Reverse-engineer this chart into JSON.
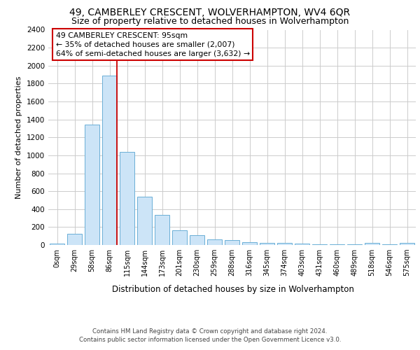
{
  "title1": "49, CAMBERLEY CRESCENT, WOLVERHAMPTON, WV4 6QR",
  "title2": "Size of property relative to detached houses in Wolverhampton",
  "xlabel": "Distribution of detached houses by size in Wolverhampton",
  "ylabel": "Number of detached properties",
  "categories": [
    "0sqm",
    "29sqm",
    "58sqm",
    "86sqm",
    "115sqm",
    "144sqm",
    "173sqm",
    "201sqm",
    "230sqm",
    "259sqm",
    "288sqm",
    "316sqm",
    "345sqm",
    "374sqm",
    "403sqm",
    "431sqm",
    "460sqm",
    "489sqm",
    "518sqm",
    "546sqm",
    "575sqm"
  ],
  "values": [
    15,
    125,
    1340,
    1890,
    1040,
    540,
    335,
    165,
    110,
    60,
    55,
    35,
    25,
    20,
    15,
    5,
    5,
    5,
    20,
    5,
    20
  ],
  "bar_color": "#cce4f7",
  "bar_edge_color": "#6aaed6",
  "grid_color": "#cccccc",
  "vline_x_index": 3,
  "vline_color": "#cc0000",
  "annotation_line1": "49 CAMBERLEY CRESCENT: 95sqm",
  "annotation_line2": "← 35% of detached houses are smaller (2,007)",
  "annotation_line3": "64% of semi-detached houses are larger (3,632) →",
  "annotation_box_color": "white",
  "annotation_border_color": "#cc0000",
  "ylim": [
    0,
    2400
  ],
  "yticks": [
    0,
    200,
    400,
    600,
    800,
    1000,
    1200,
    1400,
    1600,
    1800,
    2000,
    2200,
    2400
  ],
  "footer1": "Contains HM Land Registry data © Crown copyright and database right 2024.",
  "footer2": "Contains public sector information licensed under the Open Government Licence v3.0.",
  "bg_color": "#ffffff",
  "axes_bg_color": "#ffffff"
}
